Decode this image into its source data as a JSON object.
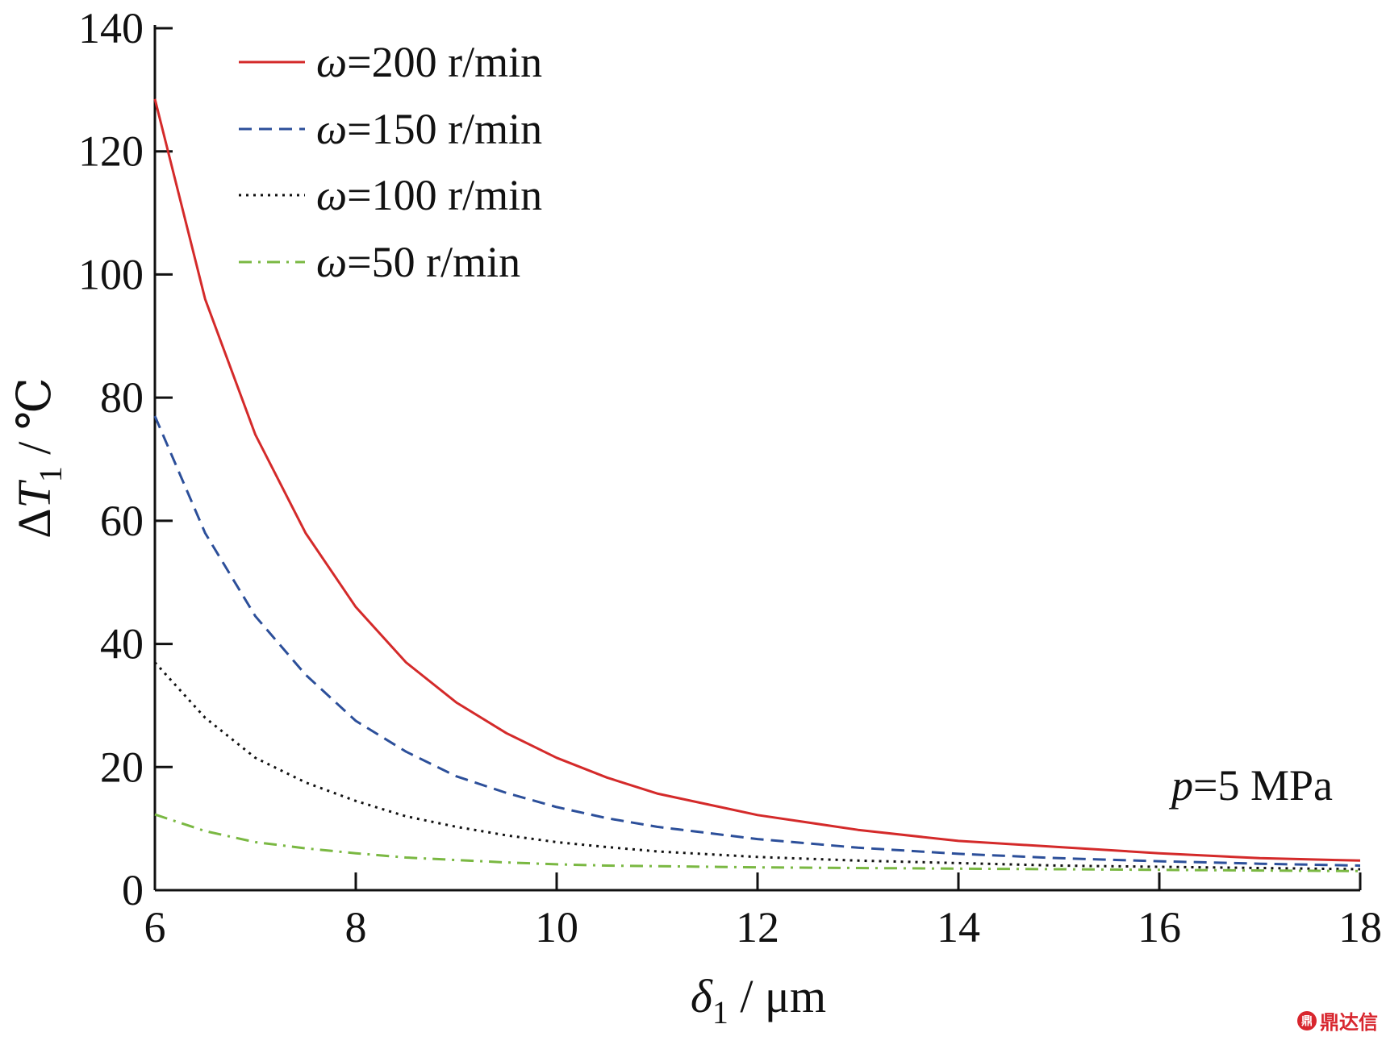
{
  "chart_data": {
    "type": "line",
    "xlabel_symbol": "δ",
    "xlabel_sub": "1",
    "xlabel_unit": " / μm",
    "ylabel_prefix": "Δ",
    "ylabel_symbol": "T",
    "ylabel_sub": "1",
    "ylabel_unit": " / ℃",
    "xlim": [
      6,
      18
    ],
    "ylim": [
      0,
      140
    ],
    "xticks": [
      6,
      8,
      10,
      12,
      14,
      16,
      18
    ],
    "yticks": [
      0,
      20,
      40,
      60,
      80,
      100,
      120,
      140
    ],
    "legend_position": "top-left",
    "annotation": {
      "symbol": "p",
      "text": "=5 MPa",
      "position": "lower-right"
    },
    "x": [
      6,
      6.5,
      7,
      7.5,
      8,
      8.5,
      9,
      9.5,
      10,
      10.5,
      11,
      12,
      13,
      14,
      15,
      16,
      17,
      18
    ],
    "series": [
      {
        "name_symbol": "ω",
        "name_text": "=200 r/min",
        "color": "#d42a2a",
        "dash": "solid",
        "values": [
          128.5,
          96,
          74,
          58,
          46,
          37,
          30.5,
          25.5,
          21.5,
          18.3,
          15.7,
          12.2,
          9.8,
          8.0,
          7.0,
          6.0,
          5.2,
          4.8
        ]
      },
      {
        "name_symbol": "ω",
        "name_text": "=150 r/min",
        "color": "#2c4f9a",
        "dash": "dashed",
        "values": [
          77,
          58,
          44.5,
          35,
          27.5,
          22.5,
          18.5,
          15.8,
          13.5,
          11.7,
          10.3,
          8.3,
          6.9,
          5.9,
          5.2,
          4.7,
          4.3,
          4.0
        ]
      },
      {
        "name_symbol": "ω",
        "name_text": "=100 r/min",
        "color": "#111111",
        "dash": "dotted",
        "values": [
          37,
          28,
          21.5,
          17.5,
          14.5,
          12,
          10.3,
          8.9,
          7.8,
          7.0,
          6.3,
          5.4,
          4.8,
          4.4,
          4.0,
          3.8,
          3.6,
          3.4
        ]
      },
      {
        "name_symbol": "ω",
        "name_text": "=50 r/min",
        "color": "#7ab842",
        "dash": "dashdot",
        "values": [
          12.3,
          9.6,
          7.8,
          6.8,
          6.0,
          5.3,
          4.9,
          4.5,
          4.2,
          4.0,
          3.9,
          3.7,
          3.6,
          3.5,
          3.4,
          3.3,
          3.2,
          3.1
        ]
      }
    ]
  },
  "watermark": {
    "logo": "鼎",
    "text": "鼎达信"
  }
}
